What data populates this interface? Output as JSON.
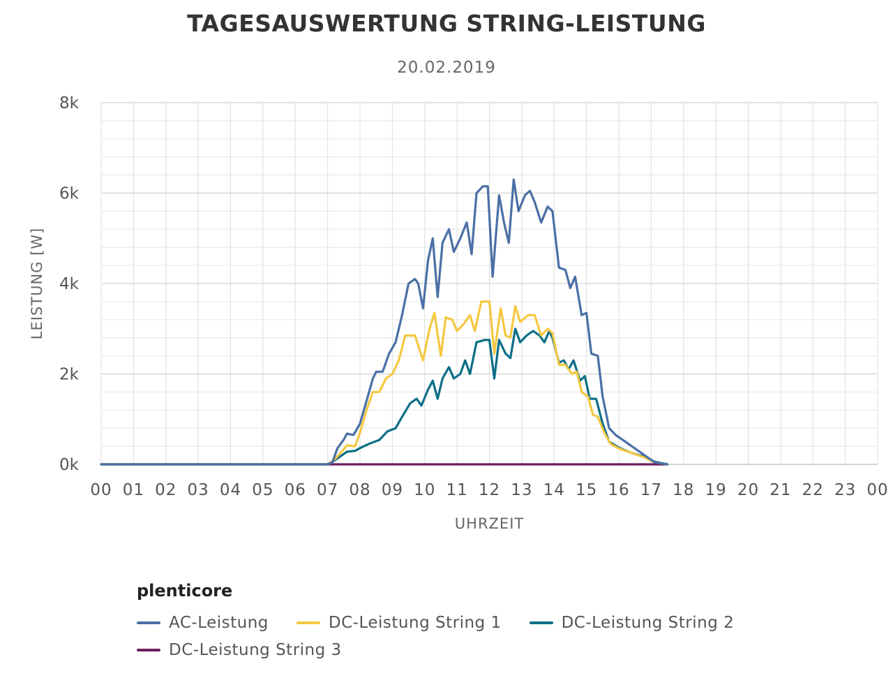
{
  "chart_data": {
    "type": "line",
    "title": "TAGESAUSWERTUNG STRING-LEISTUNG",
    "subtitle": "20.02.2019",
    "xlabel": "UHRZEIT",
    "ylabel": "LEISTUNG [W]",
    "x_ticks": [
      "00",
      "01",
      "02",
      "03",
      "04",
      "05",
      "06",
      "07",
      "08",
      "09",
      "10",
      "11",
      "12",
      "13",
      "14",
      "15",
      "16",
      "17",
      "18",
      "19",
      "20",
      "21",
      "22",
      "23",
      "00"
    ],
    "xlim": [
      0,
      24
    ],
    "y_ticks": [
      0,
      2000,
      4000,
      6000,
      8000
    ],
    "y_tick_labels": [
      "0k",
      "2k",
      "4k",
      "6k",
      "8k"
    ],
    "ylim": [
      0,
      8000
    ],
    "grid": true,
    "legend_title": "plenticore",
    "legend_position": "bottom",
    "series": [
      {
        "name": "AC-Leistung",
        "color": "#4a6fa5",
        "points": [
          [
            0,
            0
          ],
          [
            7.0,
            0
          ],
          [
            7.15,
            50
          ],
          [
            7.3,
            350
          ],
          [
            7.5,
            550
          ],
          [
            7.6,
            680
          ],
          [
            7.8,
            650
          ],
          [
            8.0,
            900
          ],
          [
            8.2,
            1400
          ],
          [
            8.4,
            1900
          ],
          [
            8.5,
            2050
          ],
          [
            8.7,
            2050
          ],
          [
            8.9,
            2450
          ],
          [
            9.1,
            2700
          ],
          [
            9.3,
            3300
          ],
          [
            9.5,
            4000
          ],
          [
            9.7,
            4100
          ],
          [
            9.8,
            4000
          ],
          [
            9.95,
            3450
          ],
          [
            10.1,
            4500
          ],
          [
            10.25,
            5000
          ],
          [
            10.4,
            3700
          ],
          [
            10.55,
            4900
          ],
          [
            10.75,
            5200
          ],
          [
            10.9,
            4700
          ],
          [
            11.1,
            5000
          ],
          [
            11.3,
            5350
          ],
          [
            11.45,
            4650
          ],
          [
            11.6,
            6000
          ],
          [
            11.8,
            6150
          ],
          [
            11.95,
            6150
          ],
          [
            12.1,
            4150
          ],
          [
            12.3,
            5950
          ],
          [
            12.45,
            5350
          ],
          [
            12.6,
            4900
          ],
          [
            12.75,
            6300
          ],
          [
            12.9,
            5600
          ],
          [
            13.1,
            5950
          ],
          [
            13.25,
            6050
          ],
          [
            13.4,
            5800
          ],
          [
            13.6,
            5350
          ],
          [
            13.8,
            5700
          ],
          [
            13.95,
            5600
          ],
          [
            14.15,
            4350
          ],
          [
            14.35,
            4300
          ],
          [
            14.5,
            3900
          ],
          [
            14.65,
            4150
          ],
          [
            14.85,
            3300
          ],
          [
            15.0,
            3350
          ],
          [
            15.15,
            2450
          ],
          [
            15.35,
            2400
          ],
          [
            15.5,
            1500
          ],
          [
            15.7,
            800
          ],
          [
            15.9,
            650
          ],
          [
            16.2,
            500
          ],
          [
            16.5,
            350
          ],
          [
            16.7,
            250
          ],
          [
            16.9,
            150
          ],
          [
            17.1,
            50
          ],
          [
            17.5,
            0
          ]
        ]
      },
      {
        "name": "DC-Leistung String 1",
        "color": "#f4c842",
        "points": [
          [
            0,
            0
          ],
          [
            7.0,
            0
          ],
          [
            7.2,
            100
          ],
          [
            7.4,
            250
          ],
          [
            7.6,
            420
          ],
          [
            7.85,
            400
          ],
          [
            8.0,
            700
          ],
          [
            8.2,
            1200
          ],
          [
            8.4,
            1600
          ],
          [
            8.6,
            1600
          ],
          [
            8.8,
            1900
          ],
          [
            9.0,
            2000
          ],
          [
            9.2,
            2300
          ],
          [
            9.4,
            2850
          ],
          [
            9.7,
            2850
          ],
          [
            9.95,
            2300
          ],
          [
            10.15,
            3000
          ],
          [
            10.3,
            3350
          ],
          [
            10.5,
            2400
          ],
          [
            10.65,
            3250
          ],
          [
            10.85,
            3200
          ],
          [
            11.0,
            2950
          ],
          [
            11.2,
            3100
          ],
          [
            11.4,
            3300
          ],
          [
            11.55,
            2950
          ],
          [
            11.75,
            3600
          ],
          [
            12.0,
            3600
          ],
          [
            12.15,
            2450
          ],
          [
            12.35,
            3450
          ],
          [
            12.5,
            2850
          ],
          [
            12.65,
            2800
          ],
          [
            12.8,
            3500
          ],
          [
            12.95,
            3150
          ],
          [
            13.2,
            3300
          ],
          [
            13.4,
            3300
          ],
          [
            13.6,
            2850
          ],
          [
            13.8,
            3000
          ],
          [
            13.95,
            2900
          ],
          [
            14.15,
            2200
          ],
          [
            14.35,
            2200
          ],
          [
            14.55,
            2000
          ],
          [
            14.7,
            2050
          ],
          [
            14.85,
            1600
          ],
          [
            15.05,
            1500
          ],
          [
            15.2,
            1100
          ],
          [
            15.35,
            1050
          ],
          [
            15.55,
            700
          ],
          [
            15.75,
            450
          ],
          [
            16.0,
            350
          ],
          [
            16.4,
            250
          ],
          [
            16.8,
            150
          ],
          [
            17.1,
            50
          ],
          [
            17.5,
            0
          ]
        ]
      },
      {
        "name": "DC-Leistung String 2",
        "color": "#0d6e87",
        "points": [
          [
            0,
            0
          ],
          [
            7.0,
            0
          ],
          [
            7.2,
            80
          ],
          [
            7.4,
            180
          ],
          [
            7.6,
            280
          ],
          [
            7.85,
            300
          ],
          [
            8.0,
            360
          ],
          [
            8.3,
            460
          ],
          [
            8.6,
            540
          ],
          [
            8.85,
            730
          ],
          [
            9.1,
            800
          ],
          [
            9.3,
            1050
          ],
          [
            9.55,
            1350
          ],
          [
            9.75,
            1450
          ],
          [
            9.9,
            1300
          ],
          [
            10.1,
            1650
          ],
          [
            10.25,
            1850
          ],
          [
            10.4,
            1450
          ],
          [
            10.55,
            1900
          ],
          [
            10.75,
            2150
          ],
          [
            10.9,
            1900
          ],
          [
            11.1,
            2000
          ],
          [
            11.25,
            2300
          ],
          [
            11.4,
            2000
          ],
          [
            11.6,
            2700
          ],
          [
            11.85,
            2750
          ],
          [
            12.0,
            2750
          ],
          [
            12.15,
            1900
          ],
          [
            12.3,
            2750
          ],
          [
            12.5,
            2450
          ],
          [
            12.65,
            2350
          ],
          [
            12.8,
            3000
          ],
          [
            12.95,
            2700
          ],
          [
            13.15,
            2850
          ],
          [
            13.35,
            2950
          ],
          [
            13.55,
            2850
          ],
          [
            13.7,
            2700
          ],
          [
            13.85,
            2950
          ],
          [
            13.95,
            2800
          ],
          [
            14.15,
            2250
          ],
          [
            14.3,
            2300
          ],
          [
            14.45,
            2100
          ],
          [
            14.6,
            2300
          ],
          [
            14.8,
            1850
          ],
          [
            14.95,
            1950
          ],
          [
            15.1,
            1450
          ],
          [
            15.3,
            1450
          ],
          [
            15.5,
            900
          ],
          [
            15.7,
            500
          ],
          [
            16.0,
            370
          ],
          [
            16.4,
            250
          ],
          [
            16.8,
            170
          ],
          [
            17.1,
            60
          ],
          [
            17.5,
            0
          ]
        ]
      },
      {
        "name": "DC-Leistung String 3",
        "color": "#6b1f5e",
        "points": [
          [
            0,
            0
          ],
          [
            17.5,
            0
          ]
        ]
      }
    ]
  }
}
